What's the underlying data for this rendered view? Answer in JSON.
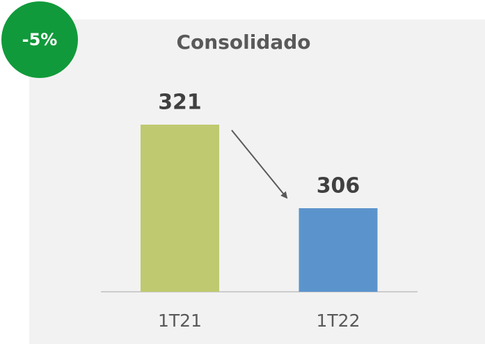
{
  "chart_data": {
    "type": "bar",
    "title": "Consolidado",
    "annotation": "-5%",
    "categories": [
      "1T21",
      "1T22"
    ],
    "values": [
      321,
      306
    ],
    "colors": [
      "#bfc96f",
      "#5b94cc"
    ],
    "badge_color": "#119a3b",
    "ylim": [
      291,
      336
    ]
  }
}
